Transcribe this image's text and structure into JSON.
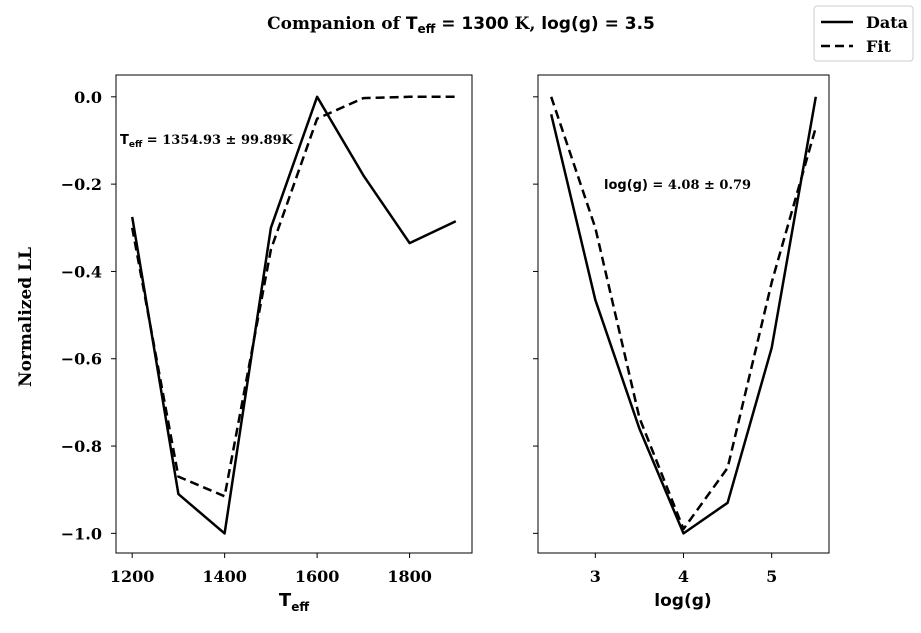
{
  "title": {
    "prefix": "Companion of ",
    "teff_sym": "T",
    "teff_sub": "eff",
    "teff_eq": " = 1300",
    "mid": " K, ",
    "logg": "log(g) = 3.5"
  },
  "legend": {
    "data_label": "Data",
    "fit_label": "Fit"
  },
  "chart_data": [
    {
      "type": "line",
      "xlabel_sym": "T",
      "xlabel_sub": "eff",
      "ylabel": "Normalized LL",
      "xlim": [
        1165,
        1935
      ],
      "ylim": [
        -1.045,
        0.05
      ],
      "xticks": [
        1200,
        1400,
        1600,
        1800
      ],
      "yticks": [
        0.0,
        -0.2,
        -0.4,
        -0.6,
        -0.8,
        -1.0
      ],
      "ytick_labels": [
        "0.0",
        "−0.2",
        "−0.4",
        "−0.6",
        "−0.8",
        "−1.0"
      ],
      "annotation": {
        "sym": "T",
        "sub": "eff",
        "eq": " = ",
        "value": "1354.93 ± 99.89K"
      },
      "series": [
        {
          "name": "Data",
          "style": "solid",
          "x": [
            1200,
            1300,
            1400,
            1500,
            1600,
            1700,
            1800,
            1900
          ],
          "y": [
            -0.275,
            -0.91,
            -1.0,
            -0.3,
            0.0,
            -0.18,
            -0.335,
            -0.285
          ]
        },
        {
          "name": "Fit",
          "style": "dashed",
          "x": [
            1200,
            1300,
            1400,
            1500,
            1600,
            1700,
            1800,
            1900
          ],
          "y": [
            -0.3,
            -0.87,
            -0.915,
            -0.35,
            -0.05,
            -0.003,
            0.0,
            0.0
          ]
        }
      ]
    },
    {
      "type": "line",
      "xlabel": "log(g)",
      "xlim": [
        2.35,
        5.65
      ],
      "ylim": [
        -1.045,
        0.05
      ],
      "xticks": [
        3,
        4,
        5
      ],
      "xtick_labels": [
        "3",
        "4",
        "5"
      ],
      "yticks": [
        0.0,
        -0.2,
        -0.4,
        -0.6,
        -0.8,
        -1.0
      ],
      "annotation": {
        "label": "log(g) = ",
        "value": "4.08 ± 0.79"
      },
      "series": [
        {
          "name": "Data",
          "style": "solid",
          "x": [
            2.5,
            3.0,
            3.5,
            4.0,
            4.5,
            5.0,
            5.5
          ],
          "y": [
            -0.04,
            -0.465,
            -0.76,
            -1.0,
            -0.93,
            -0.575,
            0.0
          ]
        },
        {
          "name": "Fit",
          "style": "dashed",
          "x": [
            2.5,
            3.0,
            3.5,
            4.0,
            4.5,
            5.0,
            5.5
          ],
          "y": [
            0.0,
            -0.3,
            -0.735,
            -0.99,
            -0.85,
            -0.425,
            -0.07
          ]
        }
      ]
    }
  ]
}
